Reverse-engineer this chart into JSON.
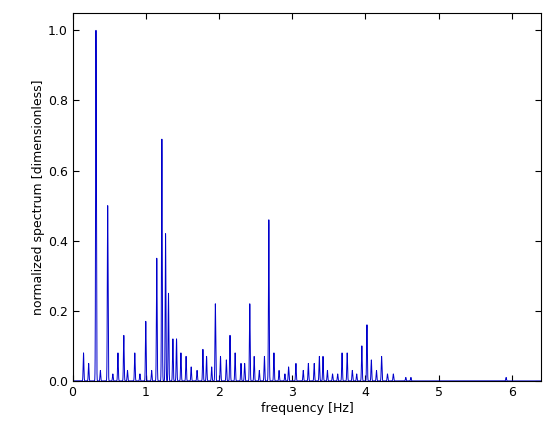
{
  "title": "",
  "xlabel": "frequency [Hz]",
  "ylabel": "normalized spectrum [dimensionless]",
  "xlim": [
    0,
    6.4
  ],
  "ylim": [
    0,
    1.05
  ],
  "line_color": "#0000CC",
  "line_width": 0.7,
  "background_color": "#ffffff",
  "yticks": [
    0,
    0.2,
    0.4,
    0.6,
    0.8,
    1.0
  ],
  "xticks": [
    0,
    1,
    2,
    3,
    4,
    5,
    6
  ],
  "peaks": [
    [
      0.15,
      0.08
    ],
    [
      0.22,
      0.05
    ],
    [
      0.32,
      1.0
    ],
    [
      0.38,
      0.03
    ],
    [
      0.48,
      0.5
    ],
    [
      0.55,
      0.02
    ],
    [
      0.62,
      0.08
    ],
    [
      0.7,
      0.13
    ],
    [
      0.75,
      0.03
    ],
    [
      0.85,
      0.08
    ],
    [
      0.92,
      0.02
    ],
    [
      1.0,
      0.17
    ],
    [
      1.08,
      0.03
    ],
    [
      1.15,
      0.35
    ],
    [
      1.22,
      0.69
    ],
    [
      1.27,
      0.42
    ],
    [
      1.31,
      0.25
    ],
    [
      1.37,
      0.12
    ],
    [
      1.42,
      0.12
    ],
    [
      1.48,
      0.08
    ],
    [
      1.55,
      0.07
    ],
    [
      1.62,
      0.04
    ],
    [
      1.7,
      0.03
    ],
    [
      1.78,
      0.09
    ],
    [
      1.83,
      0.07
    ],
    [
      1.9,
      0.04
    ],
    [
      1.95,
      0.22
    ],
    [
      2.02,
      0.07
    ],
    [
      2.1,
      0.06
    ],
    [
      2.15,
      0.13
    ],
    [
      2.22,
      0.08
    ],
    [
      2.3,
      0.05
    ],
    [
      2.35,
      0.05
    ],
    [
      2.42,
      0.22
    ],
    [
      2.48,
      0.07
    ],
    [
      2.55,
      0.03
    ],
    [
      2.62,
      0.07
    ],
    [
      2.68,
      0.46
    ],
    [
      2.75,
      0.08
    ],
    [
      2.82,
      0.03
    ],
    [
      2.9,
      0.02
    ],
    [
      2.95,
      0.04
    ],
    [
      3.05,
      0.05
    ],
    [
      3.15,
      0.03
    ],
    [
      3.22,
      0.05
    ],
    [
      3.3,
      0.05
    ],
    [
      3.37,
      0.07
    ],
    [
      3.42,
      0.07
    ],
    [
      3.48,
      0.03
    ],
    [
      3.55,
      0.02
    ],
    [
      3.62,
      0.02
    ],
    [
      3.68,
      0.08
    ],
    [
      3.75,
      0.08
    ],
    [
      3.82,
      0.03
    ],
    [
      3.88,
      0.02
    ],
    [
      3.95,
      0.1
    ],
    [
      4.02,
      0.16
    ],
    [
      4.08,
      0.06
    ],
    [
      4.15,
      0.03
    ],
    [
      4.22,
      0.07
    ],
    [
      4.3,
      0.02
    ],
    [
      4.38,
      0.02
    ],
    [
      4.55,
      0.01
    ],
    [
      4.62,
      0.01
    ],
    [
      5.92,
      0.01
    ]
  ]
}
